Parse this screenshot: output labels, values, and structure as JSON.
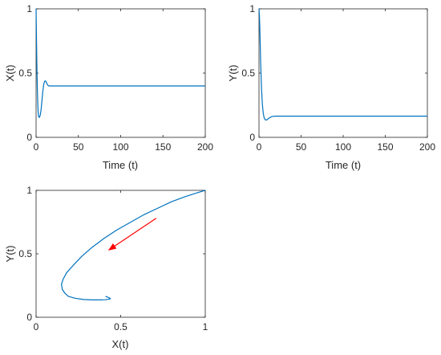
{
  "chart_data": [
    {
      "type": "line",
      "xlabel": "Time (t)",
      "ylabel": "X(t)",
      "xlim": [
        0,
        200
      ],
      "ylim": [
        0,
        1
      ],
      "xticks": [
        0,
        50,
        100,
        150,
        200
      ],
      "yticks": [
        0,
        0.5,
        1
      ],
      "yticklabels": [
        "0",
        "0.5",
        "1"
      ],
      "line_color": "#0072BD",
      "grid": false,
      "series": [
        {
          "x": [
            0,
            0.5,
            1,
            1.5,
            2,
            2.5,
            3,
            4,
            5,
            6,
            7,
            8,
            9,
            10,
            11,
            12,
            13,
            14,
            15,
            17,
            20,
            25,
            30,
            40,
            60,
            100,
            150,
            200
          ],
          "y": [
            1,
            0.75,
            0.55,
            0.38,
            0.26,
            0.19,
            0.16,
            0.155,
            0.175,
            0.22,
            0.29,
            0.36,
            0.41,
            0.435,
            0.44,
            0.43,
            0.415,
            0.405,
            0.4,
            0.4,
            0.4,
            0.4,
            0.4,
            0.4,
            0.4,
            0.4,
            0.4,
            0.4
          ]
        }
      ]
    },
    {
      "type": "line",
      "xlabel": "Time (t)",
      "ylabel": "Y(t)",
      "xlim": [
        0,
        200
      ],
      "ylim": [
        0,
        1
      ],
      "xticks": [
        0,
        50,
        100,
        150,
        200
      ],
      "yticks": [
        0,
        0.5,
        1
      ],
      "yticklabels": [
        "0",
        "0.5",
        "1"
      ],
      "line_color": "#0072BD",
      "grid": false,
      "series": [
        {
          "x": [
            0,
            0.5,
            1,
            1.5,
            2,
            3,
            4,
            5,
            6,
            7,
            8,
            9,
            10,
            12,
            14,
            16,
            20,
            30,
            50,
            100,
            150,
            200
          ],
          "y": [
            1,
            0.95,
            0.85,
            0.72,
            0.58,
            0.38,
            0.26,
            0.19,
            0.155,
            0.14,
            0.135,
            0.135,
            0.14,
            0.15,
            0.158,
            0.163,
            0.165,
            0.165,
            0.165,
            0.165,
            0.165,
            0.165
          ]
        }
      ]
    },
    {
      "type": "line",
      "xlabel": "X(t)",
      "ylabel": "Y(t)",
      "xlim": [
        0,
        1
      ],
      "ylim": [
        0,
        1
      ],
      "xticks": [
        0,
        0.5,
        1
      ],
      "xticklabels": [
        "0",
        "0.5",
        "1"
      ],
      "yticks": [
        0,
        0.5,
        1
      ],
      "yticklabels": [
        "0",
        "0.5",
        "1"
      ],
      "line_color": "#0072BD",
      "arrow_color": "#FF0000",
      "grid": false,
      "series": [
        {
          "x": [
            1.0,
            0.95,
            0.88,
            0.8,
            0.72,
            0.64,
            0.56,
            0.48,
            0.4,
            0.33,
            0.27,
            0.22,
            0.18,
            0.16,
            0.15,
            0.155,
            0.17,
            0.19,
            0.23,
            0.28,
            0.33,
            0.38,
            0.41,
            0.44,
            0.43,
            0.41
          ],
          "y": [
            1.0,
            0.98,
            0.95,
            0.91,
            0.86,
            0.81,
            0.75,
            0.69,
            0.62,
            0.55,
            0.48,
            0.41,
            0.35,
            0.3,
            0.26,
            0.22,
            0.19,
            0.165,
            0.15,
            0.14,
            0.137,
            0.137,
            0.138,
            0.145,
            0.155,
            0.165
          ]
        }
      ],
      "annotation_arrow": {
        "from": [
          0.71,
          0.78
        ],
        "to": [
          0.43,
          0.53
        ]
      }
    }
  ]
}
